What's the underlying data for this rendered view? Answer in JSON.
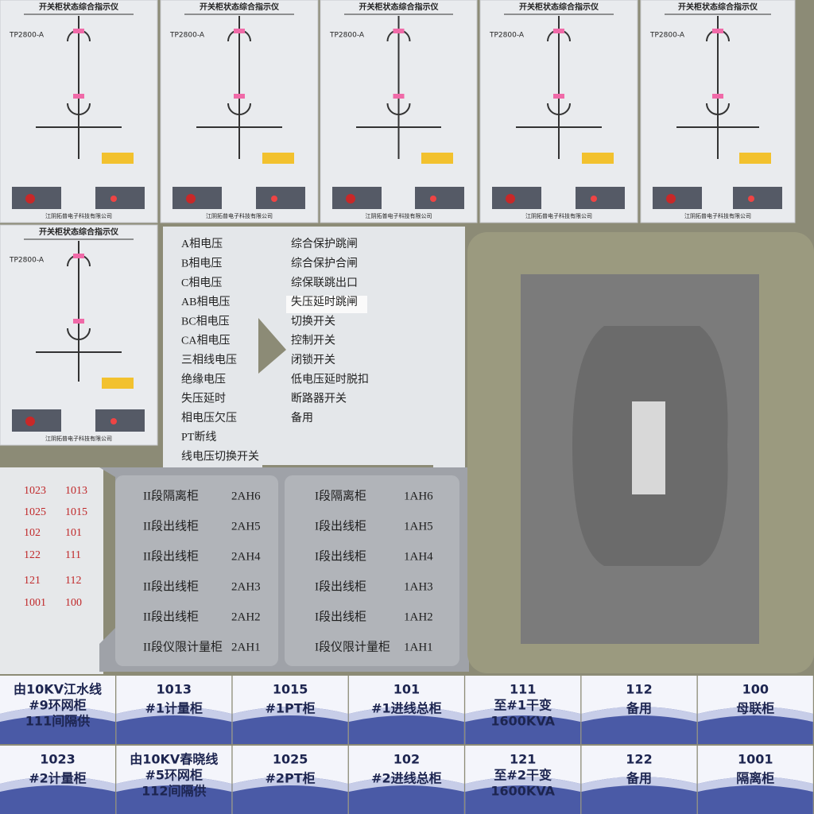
{
  "panels": [
    {
      "title": "开关柜状态综合指示仪",
      "model": "TP2800-A",
      "maker": "江阴拓普电子科技有限公司"
    },
    {
      "title": "开关柜状态综合指示仪",
      "model": "TP2800-A",
      "maker": "江阴拓普电子科技有限公司"
    },
    {
      "title": "开关柜状态综合指示仪",
      "model": "TP2800-A",
      "maker": "江阴拓普电子科技有限公司"
    },
    {
      "title": "开关柜状态综合指示仪",
      "model": "TP2800-A",
      "maker": "江阴拓普电子科技有限公司"
    },
    {
      "title": "开关柜状态综合指示仪",
      "model": "TP2800-A",
      "maker": "江阴拓普电子科技有限公司"
    },
    {
      "title": "开关柜状态综合指示仪",
      "model": "TP2800-A",
      "maker": "江阴拓普电子科技有限公司"
    }
  ],
  "labels": {
    "left": [
      "A相电压",
      "B相电压",
      "C相电压",
      "AB相电压",
      "BC相电压",
      "CA相电压",
      "三相线电压",
      "绝缘电压",
      "失压延时",
      "相电压欠压",
      "PT断线",
      "线电压切换开关"
    ],
    "right": [
      "综合保护跳闸",
      "综合保护合闸",
      "综保联跳出口",
      "失压延时跳闸",
      "切换开关",
      "控制开关",
      "闭锁开关",
      "低电压延时脱扣",
      "断路器开关",
      "备用"
    ]
  },
  "codes": [
    [
      "1023",
      "1013"
    ],
    [
      "1025",
      "1015"
    ],
    [
      "102",
      "101"
    ],
    [
      "122",
      "111"
    ],
    [
      "121",
      "112"
    ],
    [
      "1001",
      "100"
    ]
  ],
  "cabinets": [
    [
      "II段隔离柜",
      "2AH6",
      "I段隔离柜",
      "1AH6"
    ],
    [
      "II段出线柜",
      "2AH5",
      "I段出线柜",
      "1AH5"
    ],
    [
      "II段出线柜",
      "2AH4",
      "I段出线柜",
      "1AH4"
    ],
    [
      "II段出线柜",
      "2AH3",
      "I段出线柜",
      "1AH3"
    ],
    [
      "II段出线柜",
      "2AH2",
      "I段出线柜",
      "1AH2"
    ],
    [
      "II段仪限计量柜",
      "2AH1",
      "I段仪限计量柜",
      "1AH1"
    ]
  ],
  "tiles": [
    [
      "由10KV江水线",
      "#9环网柜",
      "111间隔供"
    ],
    [
      "1013",
      "#1计量柜"
    ],
    [
      "1015",
      "#1PT柜"
    ],
    [
      "101",
      "#1进线总柜"
    ],
    [
      "111",
      "至#1干变",
      "1600KVA"
    ],
    [
      "112",
      "备用"
    ],
    [
      "100",
      "母联柜"
    ],
    [
      "1023",
      "#2计量柜"
    ],
    [
      "由10KV春晓线",
      "#5环网柜",
      "112间隔供"
    ],
    [
      "1025",
      "#2PT柜"
    ],
    [
      "102",
      "#2进线总柜"
    ],
    [
      "121",
      "至#2干变",
      "1600KVA"
    ],
    [
      "122",
      "备用"
    ],
    [
      "1001",
      "隔离柜"
    ]
  ]
}
